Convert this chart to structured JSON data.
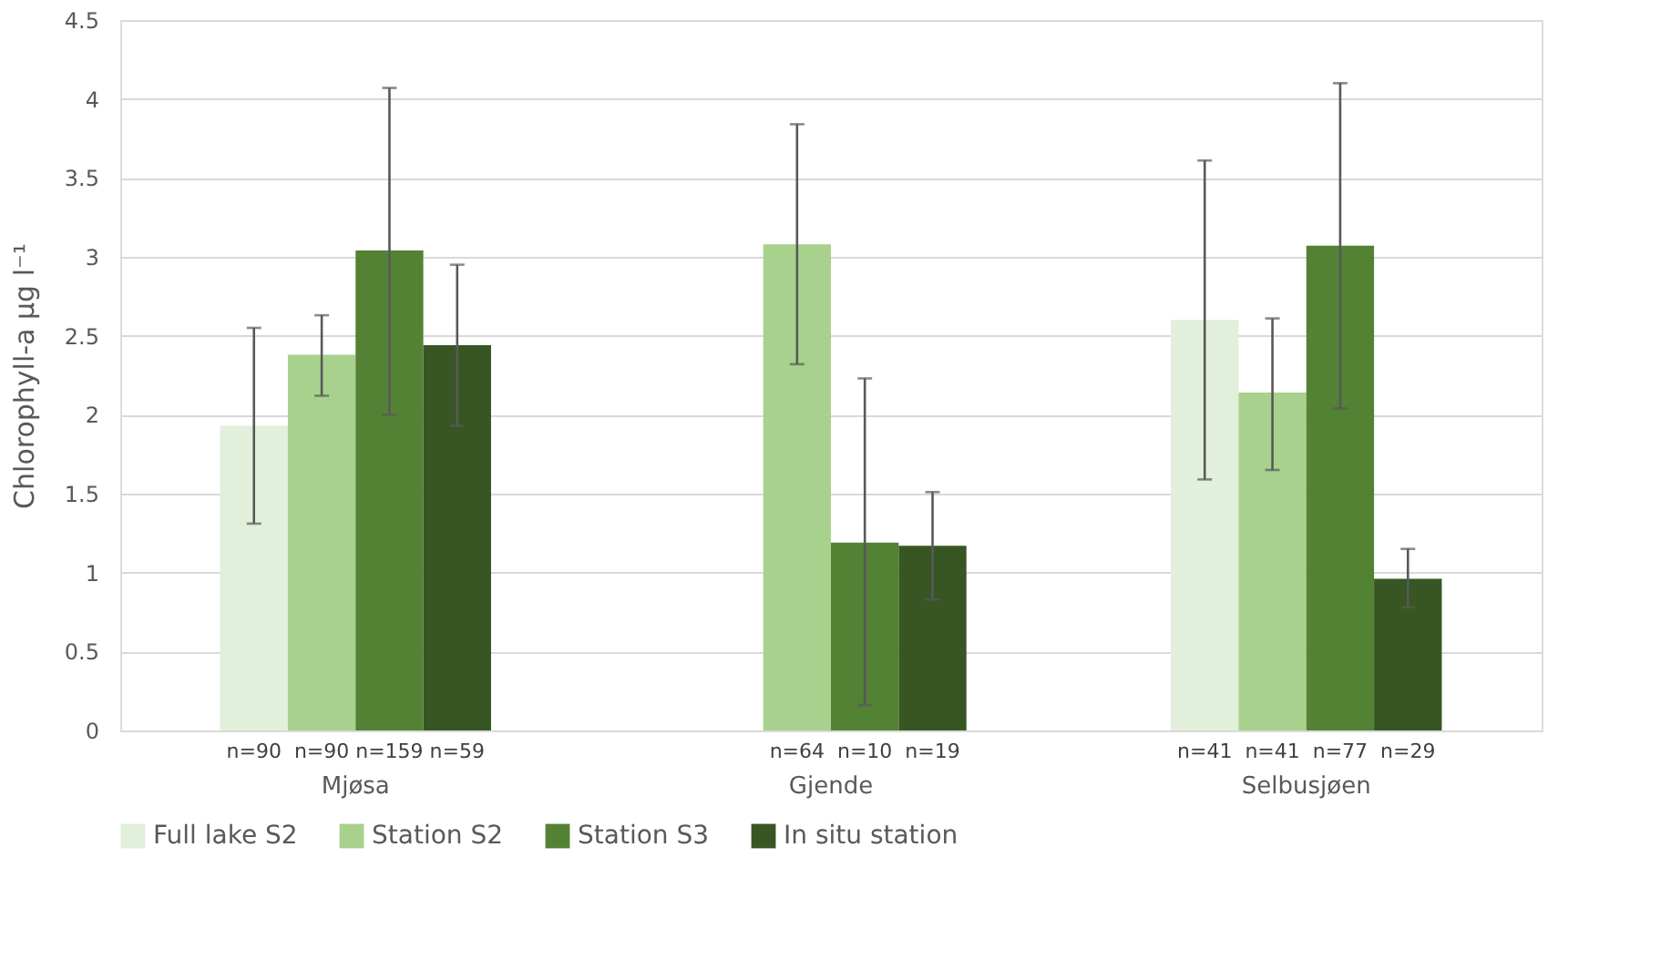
{
  "chart_data": {
    "type": "bar",
    "ylabel": "Chlorophyll-a µg l⁻¹",
    "categories": [
      "Mjøsa",
      "Gjende",
      "Selbusjøen"
    ],
    "series": [
      {
        "name": "Full lake S2",
        "color": "#e2efda",
        "values": [
          1.93,
          null,
          2.6
        ],
        "errors": [
          [
            1.31,
            2.55
          ],
          null,
          [
            1.59,
            3.61
          ]
        ]
      },
      {
        "name": "Station S2",
        "color": "#a9d18e",
        "values": [
          2.38,
          3.08,
          2.14
        ],
        "errors": [
          [
            2.12,
            2.63
          ],
          [
            2.32,
            3.84
          ],
          [
            1.65,
            2.61
          ]
        ]
      },
      {
        "name": "Station S3",
        "color": "#548235",
        "values": [
          3.04,
          1.19,
          3.07
        ],
        "errors": [
          [
            2.0,
            4.07
          ],
          [
            0.16,
            2.23
          ],
          [
            2.04,
            4.1
          ]
        ]
      },
      {
        "name": "In situ station",
        "color": "#375623",
        "values": [
          2.44,
          1.17,
          0.96
        ],
        "errors": [
          [
            1.93,
            2.95
          ],
          [
            0.83,
            1.51
          ],
          [
            0.78,
            1.15
          ]
        ]
      }
    ],
    "annotations": [
      "n=90",
      "n=90",
      "n=159",
      "n=59",
      "n=64",
      "n=10",
      "n=19",
      "n=41",
      "n=41",
      "n=77",
      "n=29"
    ],
    "ylim": [
      0,
      4.5
    ],
    "yticks": [
      0,
      0.5,
      1,
      1.5,
      2,
      2.5,
      3,
      3.5,
      4,
      4.5
    ],
    "grid": "y",
    "legend": "bottom"
  }
}
